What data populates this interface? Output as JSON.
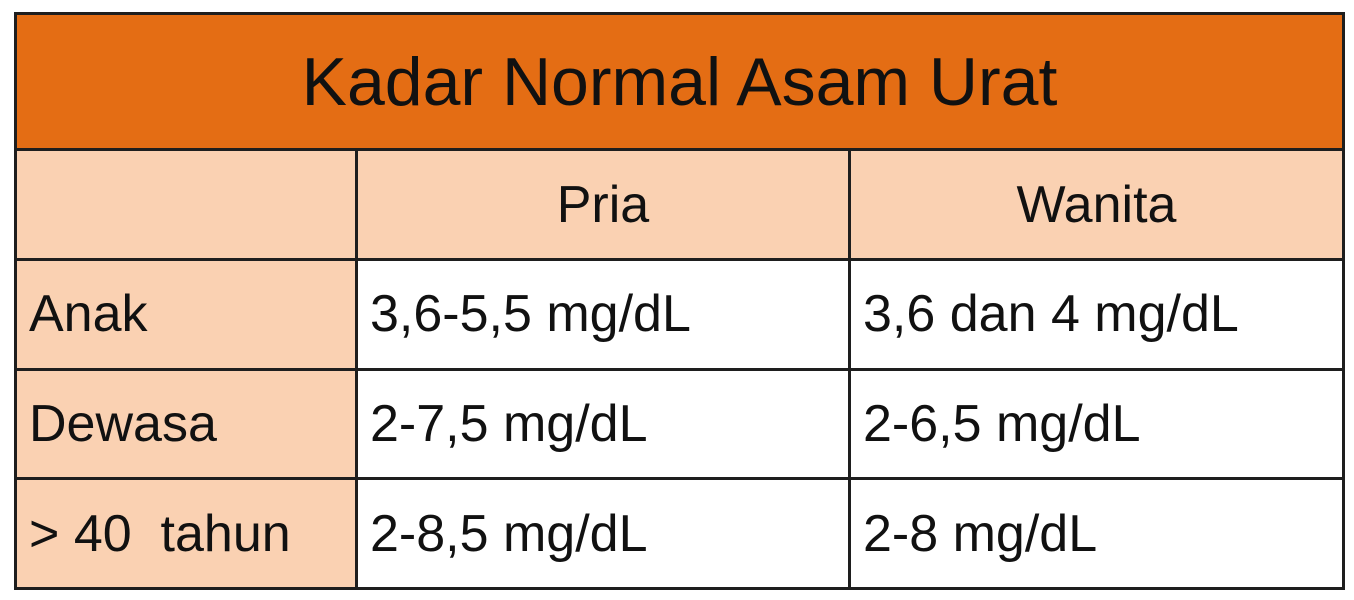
{
  "header": {
    "title": "Kadar Normal Asam Urat"
  },
  "table": {
    "columns": [
      "Pria",
      "Wanita"
    ],
    "rows": [
      [
        "Anak",
        "3,6-5,5 mg/dL",
        "3,6 dan 4 mg/dL"
      ],
      [
        "Dewasa",
        "2-7,5 mg/dL",
        "2-6,5 mg/dL"
      ],
      [
        "> 40  tahun",
        "2-8,5 mg/dL",
        "2-8 mg/dL"
      ]
    ]
  }
}
